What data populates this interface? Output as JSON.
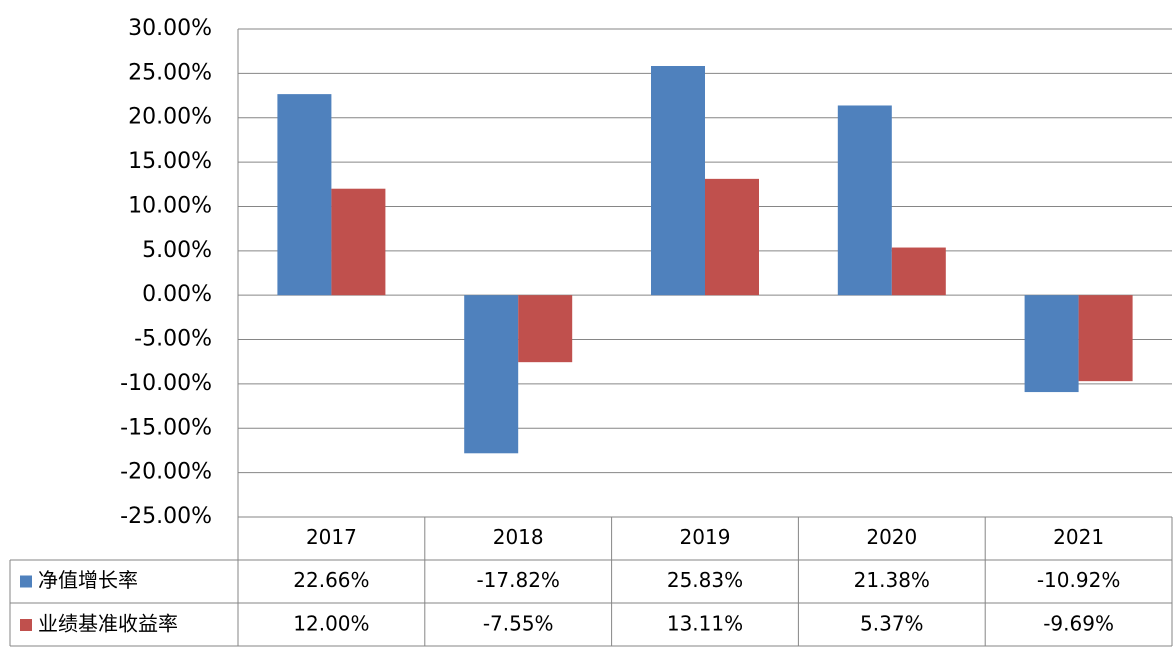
{
  "chart_data": {
    "type": "bar",
    "categories": [
      "2017",
      "2018",
      "2019",
      "2020",
      "2021"
    ],
    "series": [
      {
        "name": "净值增长率",
        "color": "#4f81bd",
        "values": [
          22.66,
          -17.82,
          25.83,
          21.38,
          -10.92
        ],
        "value_labels": [
          "22.66%",
          "-17.82%",
          "25.83%",
          "21.38%",
          "-10.92%"
        ]
      },
      {
        "name": "业绩基准收益率",
        "color": "#c0504d",
        "values": [
          12.0,
          -7.55,
          13.11,
          5.37,
          -9.69
        ],
        "value_labels": [
          "12.00%",
          "-7.55%",
          "13.11%",
          "5.37%",
          "-9.69%"
        ]
      }
    ],
    "ylim": [
      -25,
      30
    ],
    "yticks": [
      {
        "value": -25,
        "label": "-25.00%"
      },
      {
        "value": -20,
        "label": "-20.00%"
      },
      {
        "value": -15,
        "label": "-15.00%"
      },
      {
        "value": -10,
        "label": "-10.00%"
      },
      {
        "value": -5,
        "label": "-5.00%"
      },
      {
        "value": 0,
        "label": "0.00%"
      },
      {
        "value": 5,
        "label": "5.00%"
      },
      {
        "value": 10,
        "label": "10.00%"
      },
      {
        "value": 15,
        "label": "15.00%"
      },
      {
        "value": 20,
        "label": "20.00%"
      },
      {
        "value": 25,
        "label": "25.00%"
      },
      {
        "value": 30,
        "label": "30.00%"
      }
    ],
    "grid": true,
    "legend": "table"
  }
}
